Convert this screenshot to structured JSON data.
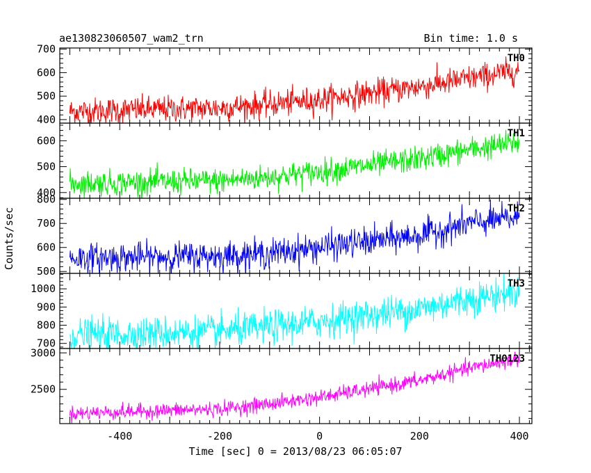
{
  "header": {
    "observation_id": "ae130823060507_wam2_trn",
    "bin_time": "Bin time: 1.0 s"
  },
  "chart_data": {
    "type": "line",
    "xlabel": "Time [sec] 0 = 2013/08/23 06:05:07",
    "ylabel": "Counts/sec",
    "xlim": [
      -520,
      425
    ],
    "xticks": [
      -400,
      -200,
      0,
      200,
      400
    ],
    "x_range": [
      -500,
      400
    ],
    "bin_seconds": 1.0,
    "series": [
      {
        "name": "TH0",
        "color": "#ff0000",
        "ylim": [
          385,
          705
        ],
        "yticks": [
          400,
          500,
          600,
          700
        ],
        "trend": [
          [
            -500,
            435
          ],
          [
            -200,
            450
          ],
          [
            -100,
            465
          ],
          [
            0,
            485
          ],
          [
            200,
            540
          ],
          [
            300,
            575
          ],
          [
            400,
            610
          ]
        ],
        "noise": 28
      },
      {
        "name": "TH1",
        "color": "#00ee00",
        "ylim": [
          378,
          668
        ],
        "yticks": [
          400,
          500,
          600
        ],
        "trend": [
          [
            -500,
            435
          ],
          [
            -200,
            445
          ],
          [
            -100,
            460
          ],
          [
            0,
            480
          ],
          [
            200,
            530
          ],
          [
            300,
            565
          ],
          [
            400,
            595
          ]
        ],
        "noise": 24
      },
      {
        "name": "TH2",
        "color": "#0000ff",
        "ylim": [
          492,
          805
        ],
        "yticks": [
          500,
          600,
          700,
          800
        ],
        "trend": [
          [
            -500,
            555
          ],
          [
            -200,
            565
          ],
          [
            -100,
            575
          ],
          [
            0,
            600
          ],
          [
            200,
            650
          ],
          [
            300,
            700
          ],
          [
            400,
            725
          ]
        ],
        "noise": 30
      },
      {
        "name": "TH3",
        "color": "#00ffff",
        "ylim": [
          672,
          1085
        ],
        "yticks": [
          700,
          800,
          900,
          1000
        ],
        "trend": [
          [
            -500,
            745
          ],
          [
            -200,
            765
          ],
          [
            -100,
            790
          ],
          [
            0,
            820
          ],
          [
            200,
            890
          ],
          [
            300,
            945
          ],
          [
            400,
            985
          ]
        ],
        "noise": 45
      },
      {
        "name": "TH0123",
        "color": "#ff00ff",
        "ylim": [
          2030,
          3060
        ],
        "yticks": [
          2500,
          3000
        ],
        "trend": [
          [
            -500,
            2170
          ],
          [
            -200,
            2230
          ],
          [
            -100,
            2300
          ],
          [
            0,
            2390
          ],
          [
            200,
            2620
          ],
          [
            300,
            2790
          ],
          [
            400,
            2920
          ]
        ],
        "noise": 50
      }
    ]
  }
}
